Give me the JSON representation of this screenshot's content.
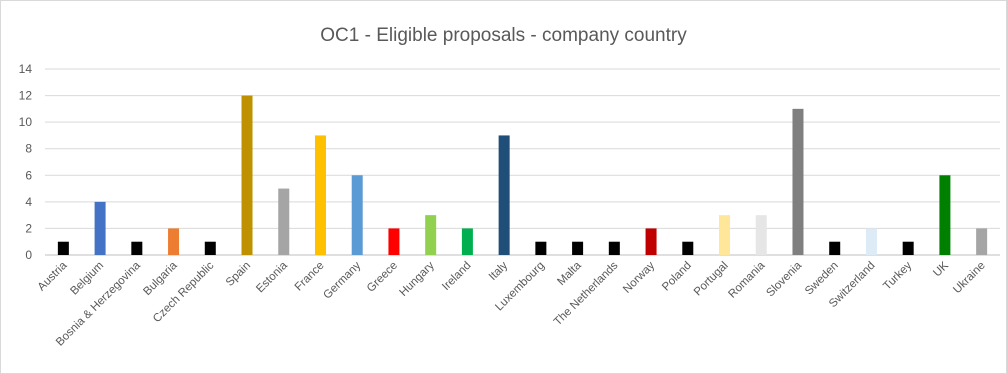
{
  "chart_data": {
    "type": "bar",
    "title": "OC1 - Eligible proposals - company country",
    "xlabel": "",
    "ylabel": "",
    "ylim": [
      0,
      14
    ],
    "yticks": [
      0,
      2,
      4,
      6,
      8,
      10,
      12,
      14
    ],
    "grid": true,
    "legend": "none",
    "categories": [
      "Austria",
      "Belgium",
      "Bosnia & Herzegovina",
      "Bulgaria",
      "Czech Republic",
      "Spain",
      "Estonia",
      "France",
      "Germany",
      "Greece",
      "Hungary",
      "Ireland",
      "Italy",
      "Luxembourg",
      "Malta",
      "The Netherlands",
      "Norway",
      "Poland",
      "Portugal",
      "Romania",
      "Slovenia",
      "Sweden",
      "Switzerland",
      "Turkey",
      "UK",
      "Ukraine"
    ],
    "values": [
      1,
      4,
      1,
      2,
      1,
      12,
      5,
      9,
      6,
      2,
      3,
      2,
      9,
      1,
      1,
      1,
      2,
      1,
      3,
      3,
      11,
      1,
      2,
      1,
      6,
      2
    ],
    "colors": [
      "#000000",
      "#4472c4",
      "#000000",
      "#ed7d31",
      "#000000",
      "#bf9000",
      "#a5a5a5",
      "#ffc000",
      "#5b9bd5",
      "#ff0000",
      "#92d050",
      "#00b050",
      "#1f4e79",
      "#000000",
      "#000000",
      "#000000",
      "#c00000",
      "#000000",
      "#ffe699",
      "#e7e6e6",
      "#7f7f7f",
      "#000000",
      "#ddebf7",
      "#000000",
      "#008000",
      "#a5a5a5"
    ]
  }
}
